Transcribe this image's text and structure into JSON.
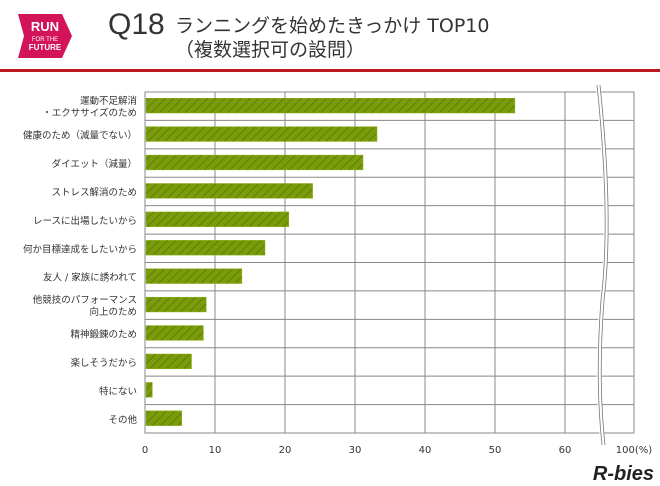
{
  "header": {
    "logo_text": [
      "RUN",
      "FOR THE",
      "FUTURE"
    ],
    "question_number": "Q18",
    "title_line1": "ランニングを始めたきっかけ TOP10",
    "title_line2": "（複数選択可の設問）"
  },
  "brand": "R-bies",
  "colors": {
    "bar": "#7a9c0a",
    "accent": "#b8191f",
    "grid": "#888888"
  },
  "chart_data": {
    "type": "bar",
    "orientation": "horizontal",
    "title": "ランニングを始めたきっかけ TOP10",
    "categories": [
      [
        "運動不足解消",
        "・エクササイズのため"
      ],
      [
        "健康のため（減量でない）"
      ],
      [
        "ダイエット（減量）"
      ],
      [
        "ストレス解消のため"
      ],
      [
        "レースに出場したいから"
      ],
      [
        "何か目標達成をしたいから"
      ],
      [
        "友人 / 家族に誘われて"
      ],
      [
        "他競技のパフォーマンス",
        "向上のため"
      ],
      [
        "精神鍛錬のため"
      ],
      [
        "楽しそうだから"
      ],
      [
        "特にない"
      ],
      [
        "その他"
      ]
    ],
    "values": [
      52.7,
      33.0,
      31.0,
      23.8,
      20.4,
      17.0,
      13.7,
      8.6,
      8.2,
      6.5,
      0.9,
      5.1
    ],
    "xlim": [
      0,
      100
    ],
    "axis_break": [
      60,
      100
    ],
    "x_ticks": [
      "0",
      "10",
      "20",
      "30",
      "40",
      "50",
      "60",
      "100(%)"
    ],
    "x_tick_values": [
      0,
      10,
      20,
      30,
      40,
      50,
      60,
      100
    ],
    "grid": true,
    "legend": "none"
  }
}
